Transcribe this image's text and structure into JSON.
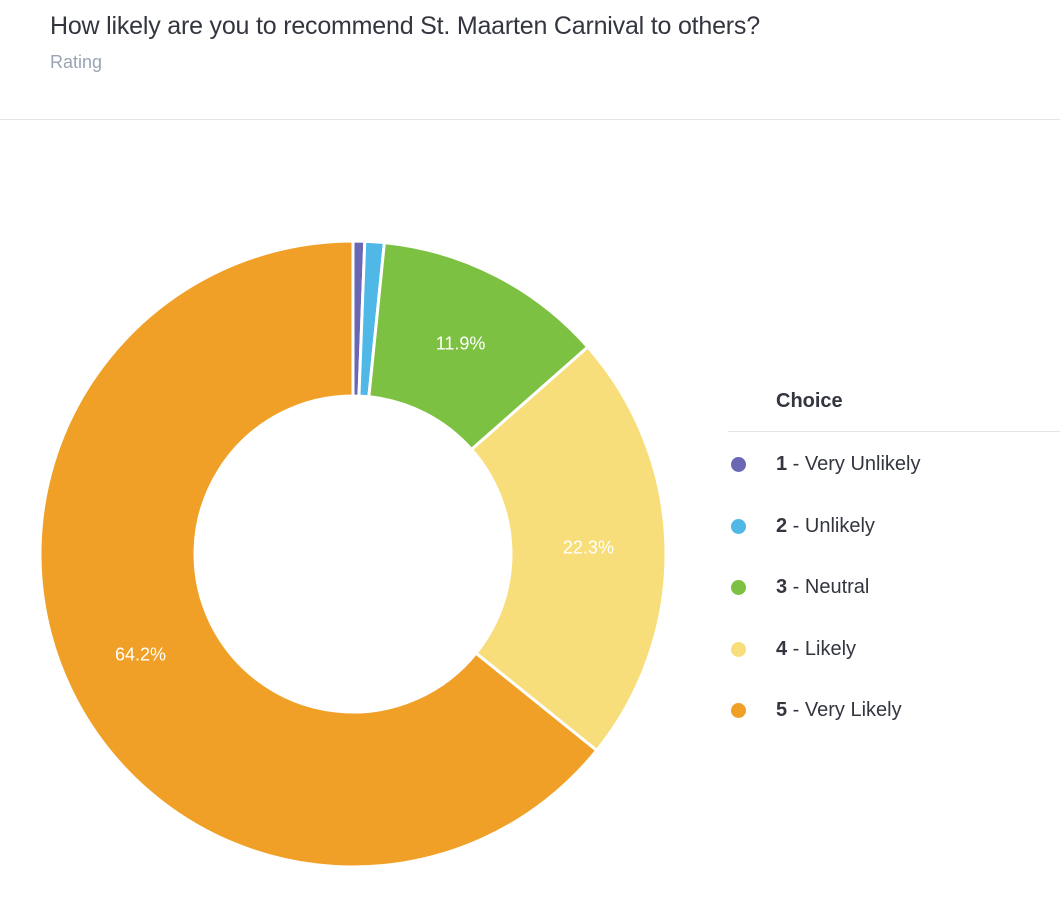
{
  "header": {
    "title": "How likely are you to recommend St. Maarten Carnival to others?",
    "subtitle": "Rating"
  },
  "legend": {
    "heading": "Choice",
    "items": [
      {
        "num": "1",
        "label": " - Very Unlikely",
        "color": "#6a67b5"
      },
      {
        "num": "2",
        "label": " - Unlikely",
        "color": "#4fb8e6"
      },
      {
        "num": "3",
        "label": " - Neutral",
        "color": "#7dc142"
      },
      {
        "num": "4",
        "label": " - Likely",
        "color": "#f8de7a"
      },
      {
        "num": "5",
        "label": " - Very Likely",
        "color": "#f0a026"
      }
    ]
  },
  "chart_data": {
    "type": "pie",
    "donut": true,
    "title": "",
    "categories": [
      "1 - Very Unlikely",
      "2 - Unlikely",
      "3 - Neutral",
      "4 - Likely",
      "5 - Very Likely"
    ],
    "values": [
      0.6,
      1.0,
      11.9,
      22.3,
      64.2
    ],
    "data_labels": [
      "",
      "",
      "11.9%",
      "22.3%",
      "64.2%"
    ],
    "colors": [
      "#6a67b5",
      "#4fb8e6",
      "#7dc142",
      "#f8de7a",
      "#f0a026"
    ],
    "legend_position": "right"
  }
}
